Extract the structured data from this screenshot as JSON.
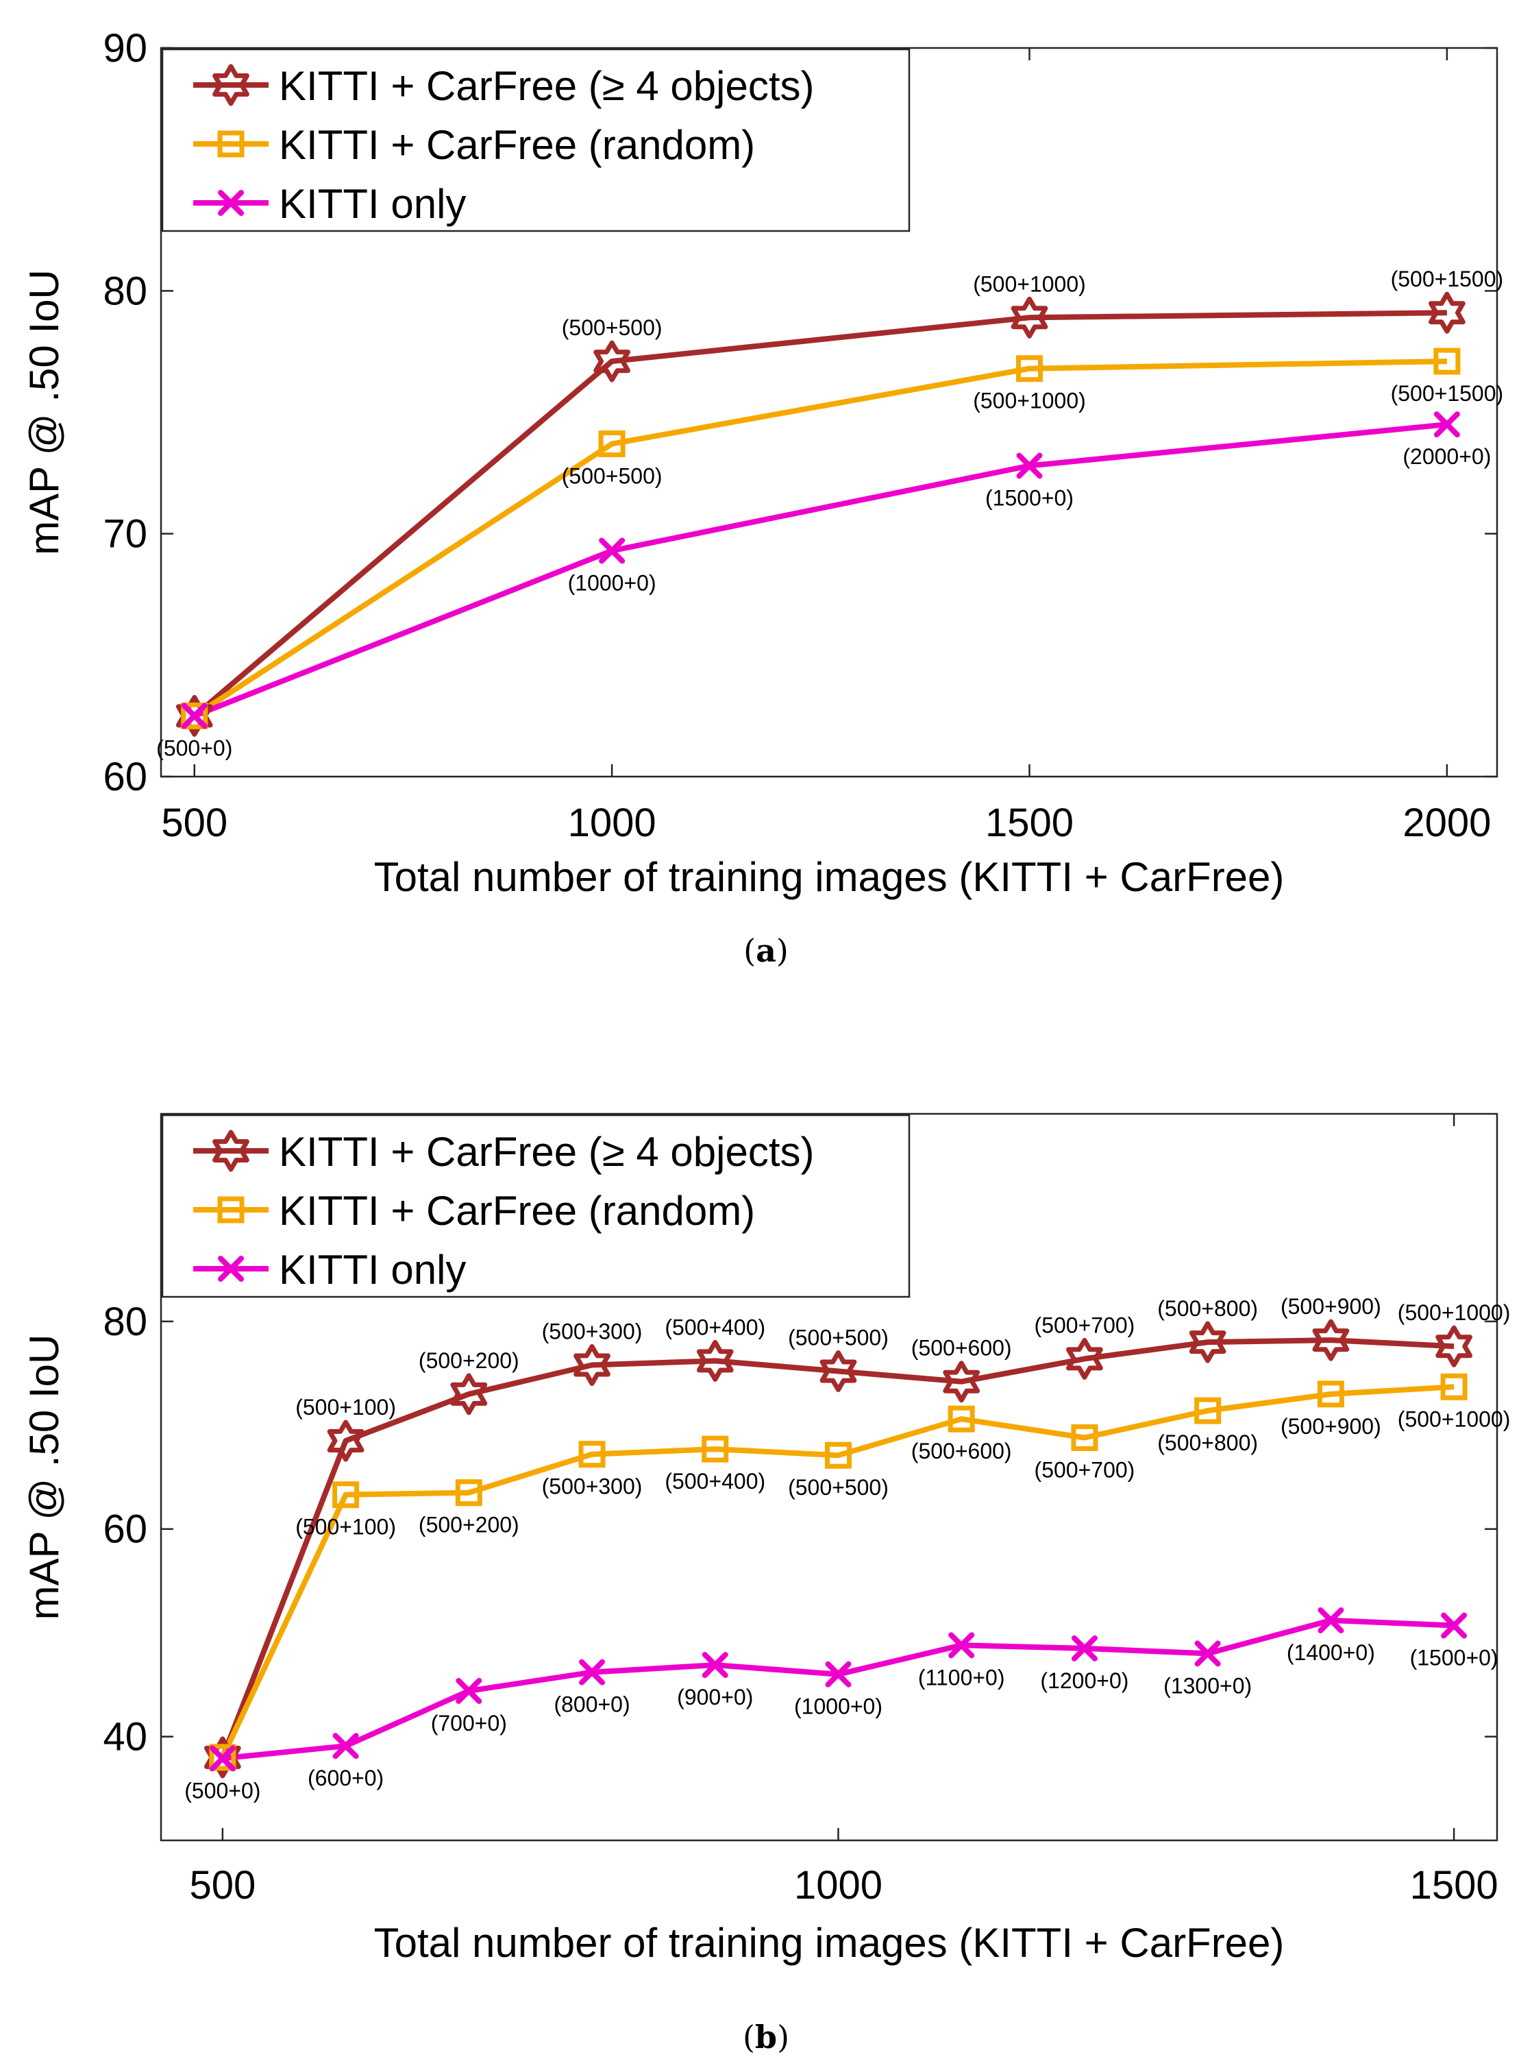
{
  "chart_data": [
    {
      "type": "line",
      "caption_letter": "a",
      "xlabel": "Total number of training images (KITTI + CarFree)",
      "ylabel": "mAP @ .50 IoU",
      "xlim": [
        460,
        2060
      ],
      "ylim": [
        60,
        90
      ],
      "xticks": [
        500,
        1000,
        1500,
        2000
      ],
      "yticks": [
        60,
        70,
        80,
        90
      ],
      "legend_position": "top-left",
      "x": [
        500,
        1000,
        1500,
        2000
      ],
      "series": [
        {
          "name": "KITTI + CarFree (≥ 4 objects)",
          "color": "#a52a2a",
          "marker": "hexagram",
          "values": [
            62.5,
            77.1,
            78.9,
            79.1
          ],
          "labels": [
            "",
            "(500+500)",
            "(500+1000)",
            "(500+1500)"
          ],
          "label_pos": "above"
        },
        {
          "name": "KITTI + CarFree (random)",
          "color": "#f5a800",
          "marker": "square",
          "values": [
            62.5,
            73.7,
            76.8,
            77.1
          ],
          "labels": [
            "",
            "(500+500)",
            "(500+1000)",
            "(500+1500)"
          ],
          "label_pos": "below"
        },
        {
          "name": "KITTI only",
          "color": "#ee00cc",
          "marker": "x",
          "values": [
            62.5,
            69.3,
            72.8,
            74.5
          ],
          "labels": [
            "(500+0)",
            "(1000+0)",
            "(1500+0)",
            "(2000+0)"
          ],
          "label_pos": "below"
        }
      ]
    },
    {
      "type": "line",
      "caption_letter": "b",
      "xlabel": "Total number of training images (KITTI + CarFree)",
      "ylabel": "mAP @ .50 IoU",
      "xlim": [
        450,
        1535
      ],
      "ylim": [
        30,
        100
      ],
      "xticks": [
        500,
        1000,
        1500
      ],
      "yticks": [
        40,
        60,
        80
      ],
      "legend_position": "top-left",
      "x": [
        500,
        600,
        700,
        800,
        900,
        1000,
        1100,
        1200,
        1300,
        1400,
        1500
      ],
      "series": [
        {
          "name": "KITTI + CarFree (≥ 4 objects)",
          "color": "#a52a2a",
          "marker": "hexagram",
          "values": [
            38.0,
            68.5,
            73.0,
            75.8,
            76.2,
            75.2,
            74.2,
            76.4,
            78.0,
            78.2,
            77.6
          ],
          "labels": [
            "",
            "(500+100)",
            "(500+200)",
            "(500+300)",
            "(500+400)",
            "(500+500)",
            "(500+600)",
            "(500+700)",
            "(500+800)",
            "(500+900)",
            "(500+1000)"
          ],
          "label_pos": "above"
        },
        {
          "name": "KITTI + CarFree (random)",
          "color": "#f5a800",
          "marker": "square",
          "values": [
            38.0,
            63.3,
            63.5,
            67.2,
            67.7,
            67.1,
            70.6,
            68.8,
            71.4,
            73.0,
            73.7
          ],
          "labels": [
            "",
            "(500+100)",
            "(500+200)",
            "(500+300)",
            "(500+400)",
            "(500+500)",
            "(500+600)",
            "(500+700)",
            "(500+800)",
            "(500+900)",
            "(500+1000)"
          ],
          "label_pos": "below"
        },
        {
          "name": "KITTI only",
          "color": "#ee00cc",
          "marker": "x",
          "values": [
            37.9,
            39.1,
            44.4,
            46.2,
            46.9,
            46.0,
            48.8,
            48.5,
            48.0,
            51.2,
            50.7
          ],
          "labels": [
            "(500+0)",
            "(600+0)",
            "(700+0)",
            "(800+0)",
            "(900+0)",
            "(1000+0)",
            "(1100+0)",
            "(1200+0)",
            "(1300+0)",
            "(1400+0)",
            "(1500+0)"
          ],
          "label_pos": "below"
        }
      ]
    }
  ]
}
